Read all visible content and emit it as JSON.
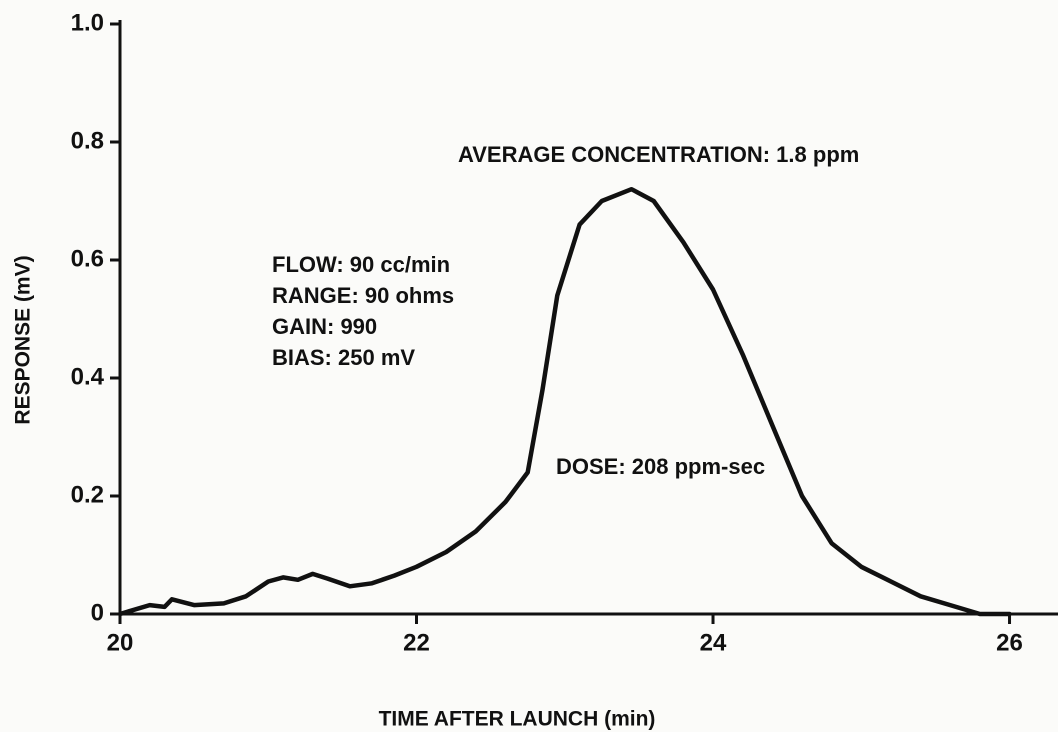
{
  "chart_data": {
    "type": "line",
    "xlabel": "TIME AFTER LAUNCH (min)",
    "ylabel": "RESPONSE (mV)",
    "annotations": [
      "AVERAGE CONCENTRATION: 1.8 ppm",
      "FLOW: 90 cc/min",
      "RANGE: 90 ohms",
      "GAIN: 990",
      "BIAS: 250 mV",
      "DOSE: 208 ppm-sec"
    ],
    "x": [
      20.0,
      20.2,
      20.3,
      20.35,
      20.5,
      20.7,
      20.85,
      21.0,
      21.1,
      21.2,
      21.3,
      21.4,
      21.55,
      21.7,
      21.85,
      22.0,
      22.2,
      22.4,
      22.6,
      22.75,
      22.85,
      22.95,
      23.1,
      23.25,
      23.45,
      23.6,
      23.8,
      24.0,
      24.2,
      24.4,
      24.6,
      24.8,
      25.0,
      25.2,
      25.4,
      25.6,
      25.8,
      26.0
    ],
    "values": [
      0,
      0.015,
      0.012,
      0.025,
      0.015,
      0.018,
      0.03,
      0.055,
      0.062,
      0.058,
      0.068,
      0.06,
      0.047,
      0.052,
      0.065,
      0.08,
      0.105,
      0.14,
      0.19,
      0.24,
      0.38,
      0.54,
      0.66,
      0.7,
      0.72,
      0.7,
      0.63,
      0.55,
      0.44,
      0.32,
      0.2,
      0.12,
      0.08,
      0.055,
      0.03,
      0.015,
      0,
      0
    ],
    "color": "#111111",
    "xlim": [
      20,
      26.3
    ],
    "ylim": [
      0,
      1
    ],
    "xticks": [
      20,
      22,
      24,
      26
    ],
    "yticks": [
      0,
      0.2,
      0.4,
      0.6,
      0.8,
      {
        "value": 1,
        "label": "1.0"
      }
    ]
  }
}
